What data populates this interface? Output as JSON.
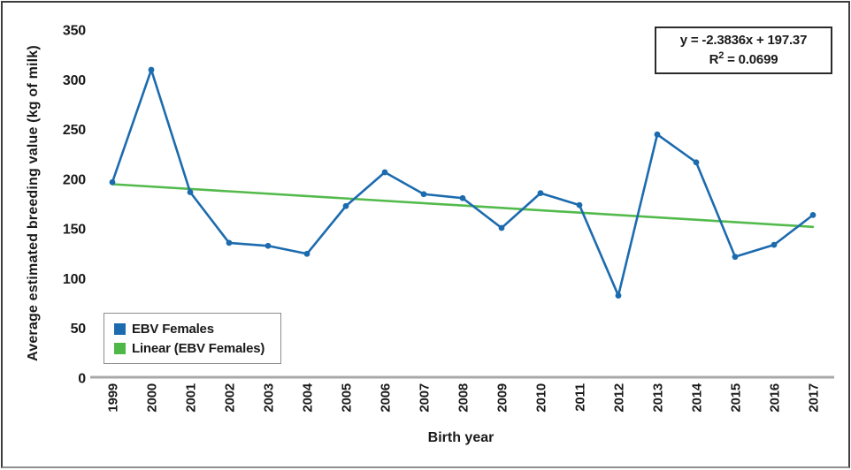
{
  "figure": {
    "y_axis_title": "Average estimated breeding value (kg of milk)",
    "x_axis_title": "Birth year",
    "equation_box": {
      "equation": "y = -2.3836x + 197.37",
      "r_prefix": "R",
      "r_exponent": "2",
      "r_suffix": " = 0.0699"
    },
    "legend": {
      "items": [
        {
          "label": "EBV Females",
          "color": "#1C6BAE"
        },
        {
          "label": "Linear (EBV Females)",
          "color": "#4DB848"
        }
      ]
    }
  },
  "colors": {
    "series_blue": "#1C6BAE",
    "trend_green": "#53BA4C",
    "axis_gray": "#A8A8A8",
    "text_black": "#1A1A1A",
    "frame_dark": "#3E3E3E"
  },
  "chart_data": {
    "type": "line",
    "title": "",
    "xlabel": "Birth year",
    "ylabel": "Average estimated breeding value (kg of milk)",
    "categories": [
      "1999",
      "2000",
      "2001",
      "2002",
      "2003",
      "2004",
      "2005",
      "2006",
      "2007",
      "2008",
      "2009",
      "2010",
      "2011",
      "2012",
      "2013",
      "2014",
      "2015",
      "2016",
      "2017"
    ],
    "series": [
      {
        "name": "EBV Females",
        "color": "#1C6BAE",
        "marker": "circle",
        "values": [
          197,
          310,
          187,
          136,
          133,
          125,
          173,
          207,
          185,
          181,
          151,
          186,
          174,
          83,
          245,
          217,
          122,
          134,
          164
        ]
      }
    ],
    "trendline": {
      "name": "Linear (EBV Females)",
      "color": "#53BA4C",
      "slope": -2.3836,
      "intercept": 197.37,
      "equation": "y = -2.3836x + 197.37",
      "r_squared": 0.0699
    },
    "ylim": [
      0,
      350
    ],
    "y_ticks": [
      0,
      50,
      100,
      150,
      200,
      250,
      300,
      350
    ],
    "grid": false,
    "legend_position": "bottom-left"
  }
}
